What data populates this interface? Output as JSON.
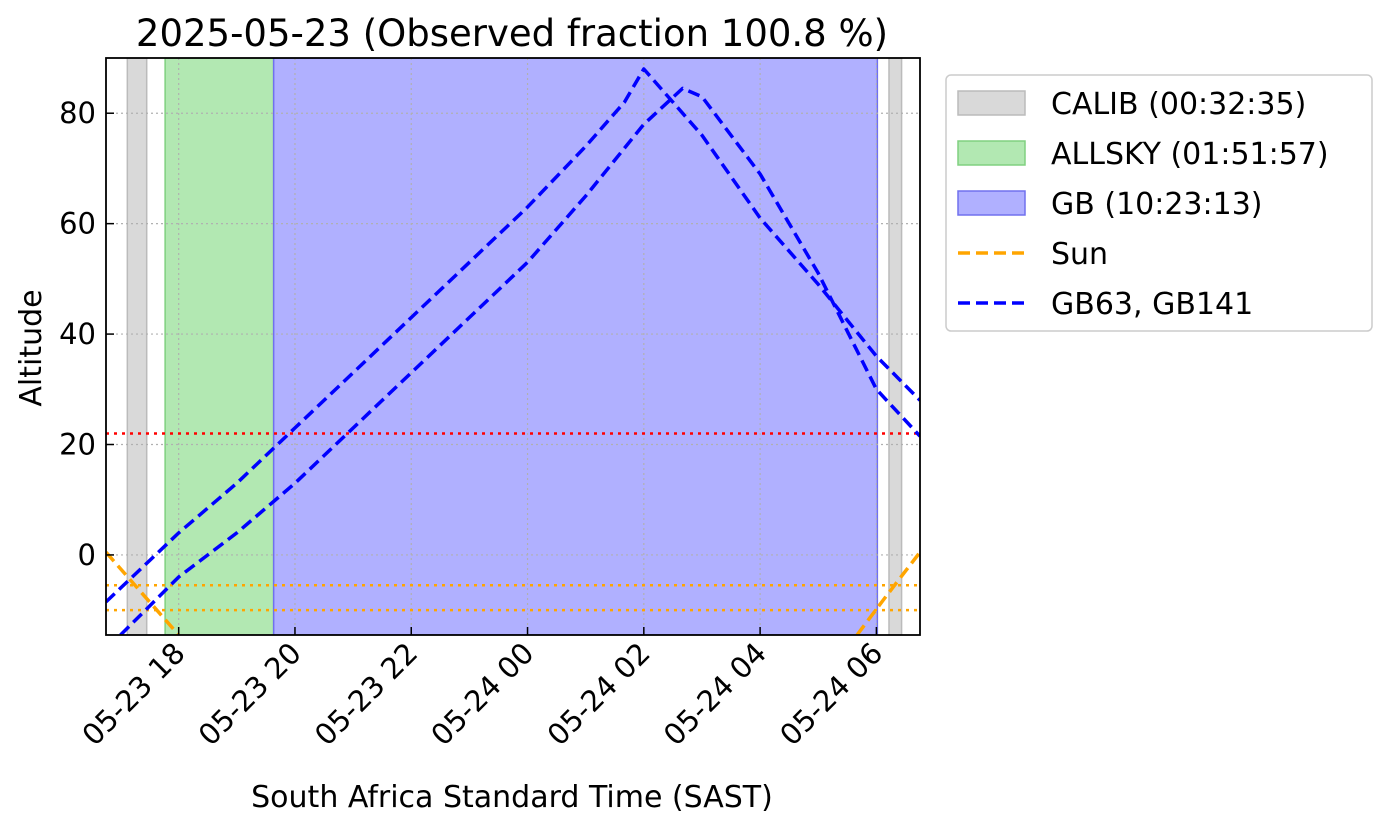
{
  "chart_data": {
    "type": "line",
    "title": "2025-05-23 (Observed fraction 100.8 %)",
    "xlabel": "South Africa Standard Time (SAST)",
    "ylabel": "Altitude",
    "xlim": [
      "2025-05-23 16:45",
      "2025-05-24 06:45"
    ],
    "ylim": [
      -14.5,
      90
    ],
    "x_ticks": [
      {
        "time": "2025-05-23 18:00",
        "label": "05-23 18"
      },
      {
        "time": "2025-05-23 20:00",
        "label": "05-23 20"
      },
      {
        "time": "2025-05-23 22:00",
        "label": "05-23 22"
      },
      {
        "time": "2025-05-24 00:00",
        "label": "05-24 00"
      },
      {
        "time": "2025-05-24 02:00",
        "label": "05-24 02"
      },
      {
        "time": "2025-05-24 04:00",
        "label": "05-24 04"
      },
      {
        "time": "2025-05-24 06:00",
        "label": "05-24 06"
      }
    ],
    "y_ticks": [
      0,
      20,
      40,
      60,
      80
    ],
    "grid": true,
    "legend_position": "outside-right",
    "intervals": [
      {
        "legend": "CALIB (00:32:35)",
        "color": "#d9d9d9",
        "spans": [
          [
            "2025-05-23 17:07",
            "2025-05-23 17:27"
          ],
          [
            "2025-05-24 06:13",
            "2025-05-24 06:26"
          ]
        ]
      },
      {
        "legend": "ALLSKY (01:51:57)",
        "color": "#b2e8b2",
        "spans": [
          [
            "2025-05-23 17:46",
            "2025-05-23 19:38"
          ]
        ]
      },
      {
        "legend": "GB (10:23:13)",
        "color": "#b0b0ff",
        "spans": [
          [
            "2025-05-23 19:38",
            "2025-05-24 06:01"
          ]
        ]
      }
    ],
    "series": [
      {
        "name": "Sun",
        "color": "#ffa500",
        "style": "dashed",
        "points": [
          [
            "2025-05-23 16:45",
            0.5
          ],
          [
            "2025-05-23 17:30",
            -8.5
          ],
          [
            "2025-05-23 18:00",
            -14.5
          ]
        ]
      },
      {
        "name": "Sun",
        "color": "#ffa500",
        "style": "dashed",
        "points": [
          [
            "2025-05-24 05:40",
            -14.5
          ],
          [
            "2025-05-24 06:10",
            -7.5
          ],
          [
            "2025-05-24 06:45",
            0.5
          ]
        ]
      },
      {
        "name": "GB63, GB141",
        "color": "#0000ff",
        "style": "dashed",
        "points": [
          [
            "2025-05-23 16:45",
            -8.5
          ],
          [
            "2025-05-23 18:00",
            4
          ],
          [
            "2025-05-23 19:00",
            13
          ],
          [
            "2025-05-23 20:00",
            23
          ],
          [
            "2025-05-23 22:00",
            43
          ],
          [
            "2025-05-24 00:00",
            63
          ],
          [
            "2025-05-24 01:00",
            74
          ],
          [
            "2025-05-24 01:40",
            82
          ],
          [
            "2025-05-24 02:00",
            88
          ],
          [
            "2025-05-24 02:20",
            84
          ],
          [
            "2025-05-24 03:00",
            76
          ],
          [
            "2025-05-24 04:00",
            61
          ],
          [
            "2025-05-24 05:00",
            49
          ],
          [
            "2025-05-24 06:00",
            36
          ],
          [
            "2025-05-24 06:45",
            28
          ]
        ]
      },
      {
        "name": "GB63, GB141",
        "color": "#0000ff",
        "style": "dashed",
        "points": [
          [
            "2025-05-23 17:00",
            -14.5
          ],
          [
            "2025-05-23 18:00",
            -4
          ],
          [
            "2025-05-23 19:00",
            4
          ],
          [
            "2025-05-23 20:00",
            13
          ],
          [
            "2025-05-23 22:00",
            33
          ],
          [
            "2025-05-24 00:00",
            53
          ],
          [
            "2025-05-24 01:00",
            65
          ],
          [
            "2025-05-24 02:00",
            78
          ],
          [
            "2025-05-24 02:40",
            84.5
          ],
          [
            "2025-05-24 03:00",
            83
          ],
          [
            "2025-05-24 04:00",
            69
          ],
          [
            "2025-05-24 05:00",
            51
          ],
          [
            "2025-05-24 06:00",
            30
          ],
          [
            "2025-05-24 06:45",
            21.5
          ]
        ]
      }
    ],
    "horizontal_lines": [
      {
        "y": 22,
        "color": "#ff0000",
        "style": "dotted"
      },
      {
        "y": -5.5,
        "color": "#ffa500",
        "style": "dotted"
      },
      {
        "y": -10,
        "color": "#ffa500",
        "style": "dotted"
      }
    ],
    "legend": [
      {
        "label": "CALIB (00:32:35)",
        "kind": "patch",
        "color": "#d9d9d9",
        "edge": "#bbbbbb"
      },
      {
        "label": "ALLSKY (01:51:57)",
        "kind": "patch",
        "color": "#b2e8b2",
        "edge": "#80d080"
      },
      {
        "label": "GB (10:23:13)",
        "kind": "patch",
        "color": "#b0b0ff",
        "edge": "#7070ee"
      },
      {
        "label": "Sun",
        "kind": "line",
        "color": "#ffa500"
      },
      {
        "label": "GB63, GB141",
        "kind": "line",
        "color": "#0000ff"
      }
    ]
  }
}
